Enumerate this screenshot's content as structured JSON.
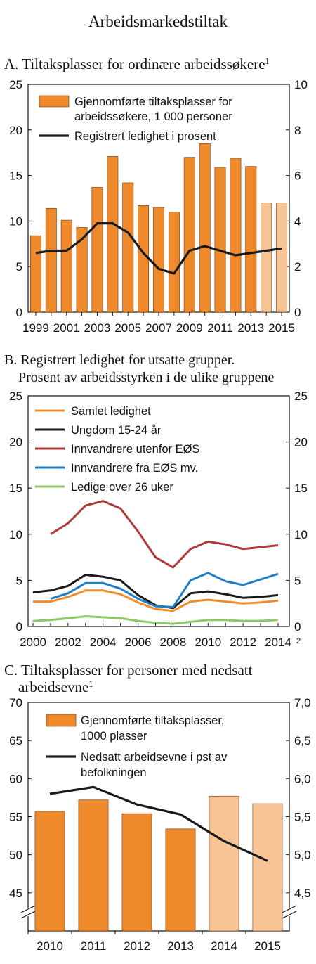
{
  "page_title": "Arbeidsmarkedstiltak",
  "chart_data": [
    {
      "id": "A",
      "type": "bar",
      "title_lines": [
        "A.  Tiltaksplasser for ordinære arbeidssøkere"
      ],
      "title_superscript": "1",
      "categories": [
        "1999",
        "2000",
        "2001",
        "2002",
        "2003",
        "2004",
        "2005",
        "2006",
        "2007",
        "2008",
        "2009",
        "2010",
        "2011",
        "2012",
        "2013",
        "2014",
        "2015"
      ],
      "x_tick_labels": [
        "1999",
        "2001",
        "2003",
        "2005",
        "2007",
        "2009",
        "2011",
        "2013",
        "2015"
      ],
      "y_left": {
        "min": 0,
        "max": 25,
        "ticks": [
          "0",
          "5",
          "10",
          "15",
          "20",
          "25"
        ]
      },
      "y_right": {
        "min": 0,
        "max": 10,
        "ticks": [
          "0",
          "2",
          "4",
          "6",
          "8",
          "10"
        ]
      },
      "series": [
        {
          "name_lines": [
            "Gjennomførte tiltaksplasser for",
            "arbeidssøkere, 1 000 personer"
          ],
          "kind": "bar",
          "axis": "left",
          "values": [
            8.4,
            11.4,
            10.1,
            9.3,
            13.7,
            17.1,
            14.2,
            11.7,
            11.5,
            11.0,
            17.0,
            18.5,
            15.9,
            16.9,
            16.0,
            12.0,
            12.0
          ],
          "projected_from_index": 15
        },
        {
          "name_lines": [
            "Registrert ledighet i prosent"
          ],
          "kind": "line",
          "axis": "right",
          "values": [
            2.6,
            2.7,
            2.7,
            3.2,
            3.9,
            3.9,
            3.5,
            2.6,
            1.9,
            1.7,
            2.7,
            2.9,
            2.7,
            2.5,
            2.6,
            2.7,
            2.8
          ]
        }
      ],
      "colors": {
        "bar": "#EE8A2C",
        "bar_projected": "#F6C495",
        "line": "#1A1A1A"
      }
    },
    {
      "id": "B",
      "type": "line",
      "title_lines": [
        "B. Registrert ledighet for utsatte grupper.",
        "Prosent av arbeidsstyrken i de ulike gruppene"
      ],
      "x": [
        2000,
        2001,
        2002,
        2003,
        2004,
        2005,
        2006,
        2007,
        2008,
        2009,
        2010,
        2011,
        2012,
        2013,
        2014
      ],
      "x_tick_labels": [
        "2000",
        "2002",
        "2004",
        "2006",
        "2008",
        "2010",
        "2012",
        "2014"
      ],
      "x_tick_superscript": "2",
      "y_left": {
        "min": 0,
        "max": 25,
        "ticks": [
          "0",
          "5",
          "10",
          "15",
          "20",
          "25"
        ]
      },
      "y_right": {
        "min": 0,
        "max": 25,
        "ticks": [
          "0",
          "5",
          "10",
          "15",
          "20",
          "25"
        ]
      },
      "series": [
        {
          "name": "Samlet ledighet",
          "color": "#F28C28",
          "values": [
            2.7,
            2.7,
            3.2,
            3.9,
            3.9,
            3.5,
            2.6,
            1.9,
            1.7,
            2.7,
            2.9,
            2.7,
            2.5,
            2.6,
            2.8
          ]
        },
        {
          "name": "Ungdom 15-24 år",
          "color": "#1A1A1A",
          "values": [
            3.7,
            3.9,
            4.4,
            5.6,
            5.4,
            5.0,
            3.4,
            2.3,
            2.0,
            3.6,
            3.8,
            3.5,
            3.1,
            3.2,
            3.4
          ]
        },
        {
          "name": "Innvandrere utenfor EØS",
          "color": "#B03A3A",
          "values": [
            null,
            10.0,
            11.2,
            13.1,
            13.6,
            12.8,
            10.3,
            7.5,
            6.4,
            8.4,
            9.2,
            8.9,
            8.4,
            8.6,
            8.8
          ]
        },
        {
          "name": "Innvandrere fra EØS mv.",
          "color": "#1F7FC4",
          "values": [
            null,
            3.0,
            3.6,
            4.7,
            4.7,
            4.1,
            3.0,
            2.2,
            2.1,
            5.0,
            5.8,
            4.9,
            4.5,
            5.1,
            5.7
          ]
        },
        {
          "name": "Ledige over 26 uker",
          "color": "#8CC864",
          "values": [
            0.6,
            0.7,
            0.9,
            1.1,
            1.0,
            0.9,
            0.6,
            0.4,
            0.3,
            0.5,
            0.7,
            0.7,
            0.6,
            0.6,
            0.7
          ]
        }
      ]
    },
    {
      "id": "C",
      "type": "bar",
      "title_lines": [
        "C.  Tiltaksplasser for personer med nedsatt",
        "arbeidsevne"
      ],
      "title_superscript": "1",
      "categories": [
        "2010",
        "2011",
        "2012",
        "2013",
        "2014",
        "2015"
      ],
      "x_tick_labels": [
        "2010",
        "2011",
        "2012",
        "2013",
        "2014",
        "2015"
      ],
      "y_left": {
        "min": 40,
        "max": 70,
        "ticks": [
          "45",
          "50",
          "55",
          "60",
          "65",
          "70"
        ],
        "axis_break": true
      },
      "y_right": {
        "min": 4.0,
        "max": 7.0,
        "ticks": [
          "4,5",
          "5,0",
          "5,5",
          "6,0",
          "6,5",
          "7,0"
        ],
        "axis_break": true
      },
      "series": [
        {
          "name_lines": [
            "Gjennomførte tiltaksplasser,",
            "1000 plasser"
          ],
          "kind": "bar",
          "axis": "left",
          "values": [
            55.7,
            57.2,
            55.4,
            53.4,
            57.7,
            56.7
          ],
          "projected_from_index": 4
        },
        {
          "name_lines": [
            "Nedsatt arbeidsevne i pst av",
            "befolkningen"
          ],
          "kind": "line",
          "axis": "right",
          "values": [
            5.8,
            5.89,
            5.66,
            5.53,
            5.18,
            4.92
          ]
        }
      ],
      "colors": {
        "bar": "#EE8A2C",
        "bar_projected": "#F6C495",
        "line": "#1A1A1A"
      }
    }
  ]
}
